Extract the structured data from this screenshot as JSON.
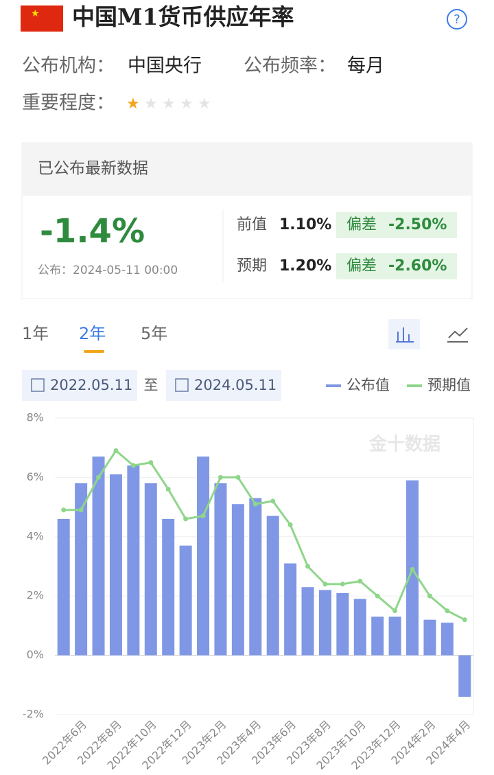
{
  "header": {
    "title": "中国M1货币供应年率",
    "help": "?",
    "agency_label": "公布机构：",
    "agency": "中国央行",
    "frequency_label": "公布频率：",
    "frequency": "每月",
    "importance_label": "重要程度：",
    "importance_stars": 1
  },
  "latest": {
    "heading": "已公布最新数据",
    "actual": "-1.4%",
    "published": "公布：2024-05-11 00:00",
    "previous": {
      "label": "前值",
      "value": "1.10%",
      "deviation_label": "偏差",
      "deviation": "-2.50%"
    },
    "forecast": {
      "label": "预期",
      "value": "1.20%",
      "deviation_label": "偏差",
      "deviation": "-2.60%"
    }
  },
  "tabs": [
    "1年",
    "2年",
    "5年"
  ],
  "active_tab": 1,
  "range": {
    "start": "2022.05.11",
    "separator": "至",
    "end": "2024.05.11"
  },
  "chart_data": {
    "type": "bar",
    "watermark": "金十数据",
    "categories": [
      null,
      "2022年6月",
      null,
      "2022年8月",
      null,
      "2022年10月",
      null,
      "2022年12月",
      null,
      "2023年2月",
      null,
      "2023年4月",
      null,
      "2023年6月",
      null,
      "2023年8月",
      null,
      "2023年10月",
      null,
      "2023年12月",
      null,
      "2024年2月",
      null,
      "2024年4月"
    ],
    "series": [
      {
        "name": "公布值",
        "type": "bar",
        "color": "#7f97e4",
        "values": [
          4.6,
          5.8,
          6.7,
          6.1,
          6.4,
          5.8,
          4.6,
          3.7,
          6.7,
          5.8,
          5.1,
          5.3,
          4.7,
          3.1,
          2.3,
          2.2,
          2.1,
          1.9,
          1.3,
          1.3,
          5.9,
          1.2,
          1.1,
          -1.4
        ]
      },
      {
        "name": "预期值",
        "type": "line",
        "color": "#8fd68a",
        "values": [
          4.9,
          4.9,
          6.0,
          6.9,
          6.4,
          6.5,
          5.6,
          4.6,
          4.7,
          6.0,
          6.0,
          5.1,
          5.2,
          4.4,
          3.0,
          2.4,
          2.4,
          2.5,
          2.0,
          1.5,
          2.9,
          2.0,
          1.5,
          1.2
        ]
      }
    ],
    "ylim": [
      -2,
      8
    ],
    "yticks": [
      {
        "value": -2,
        "label": "-2%"
      },
      {
        "value": 0,
        "label": "0%"
      },
      {
        "value": 2,
        "label": "2%"
      },
      {
        "value": 4,
        "label": "4%"
      },
      {
        "value": 6,
        "label": "6%"
      },
      {
        "value": 8,
        "label": "8%"
      }
    ],
    "grid": true
  }
}
